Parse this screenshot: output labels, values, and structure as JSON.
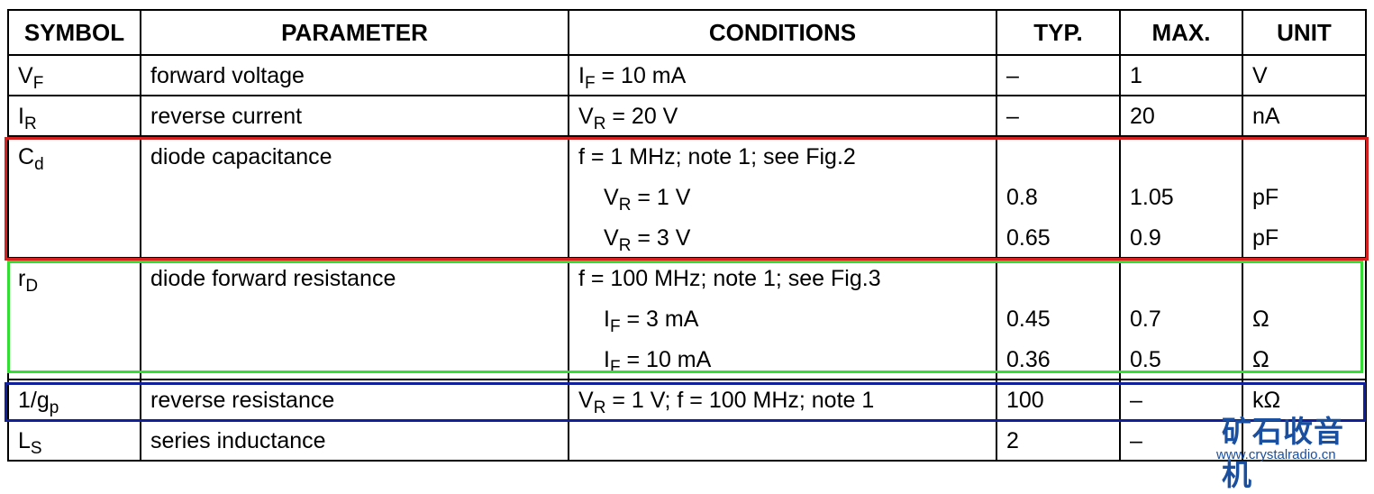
{
  "table": {
    "header": [
      "SYMBOL",
      "PARAMETER",
      "CONDITIONS",
      "TYP.",
      "MAX.",
      "UNIT"
    ],
    "rows": [
      {
        "symbol": [
          "V",
          {
            "sub": "F"
          }
        ],
        "parameter": "forward voltage",
        "conditions": [
          [
            "I",
            {
              "sub": "F"
            },
            " = 10 mA"
          ]
        ],
        "typ": [
          "–"
        ],
        "max": [
          "1"
        ],
        "unit": [
          "V"
        ]
      },
      {
        "symbol": [
          "I",
          {
            "sub": "R"
          }
        ],
        "parameter": "reverse current",
        "conditions": [
          [
            "V",
            {
              "sub": "R"
            },
            " = 20 V"
          ]
        ],
        "typ": [
          "–"
        ],
        "max": [
          "20"
        ],
        "unit": [
          "nA"
        ]
      },
      {
        "symbol": [
          "C",
          {
            "sub": "d"
          }
        ],
        "parameter": "diode capacitance",
        "conditions": [
          [
            "f = 1 MHz; note 1; see Fig.2"
          ],
          [
            "V",
            {
              "sub": "R"
            },
            " = 1 V"
          ],
          [
            "V",
            {
              "sub": "R"
            },
            " = 3 V"
          ]
        ],
        "typ": [
          "0.8",
          "0.65"
        ],
        "max": [
          "1.05",
          "0.9"
        ],
        "unit": [
          "pF",
          "pF"
        ]
      },
      {
        "symbol": [
          "r",
          {
            "sub": "D"
          }
        ],
        "parameter": "diode forward resistance",
        "conditions": [
          [
            "f = 100 MHz; note 1; see Fig.3"
          ],
          [
            "I",
            {
              "sub": "F"
            },
            " = 3 mA"
          ],
          [
            "I",
            {
              "sub": "F"
            },
            " = 10 mA"
          ]
        ],
        "typ": [
          "0.45",
          "0.36"
        ],
        "max": [
          "0.7",
          "0.5"
        ],
        "unit": [
          "Ω",
          "Ω"
        ]
      },
      {
        "symbol": [
          "1/g",
          {
            "sub": "p"
          }
        ],
        "parameter": "reverse resistance",
        "conditions": [
          [
            "V",
            {
              "sub": "R"
            },
            " = 1 V; f = 100 MHz; note 1"
          ]
        ],
        "typ": [
          "100"
        ],
        "max": [
          "–"
        ],
        "unit": [
          "kΩ"
        ]
      },
      {
        "symbol": [
          "L",
          {
            "sub": "S"
          }
        ],
        "parameter": "series inductance",
        "conditions": [],
        "typ": [
          "2"
        ],
        "max": [
          "–"
        ],
        "unit": []
      }
    ],
    "watermark": {
      "title": "矿石收音机",
      "url": "www.crystalradio.cn"
    }
  }
}
